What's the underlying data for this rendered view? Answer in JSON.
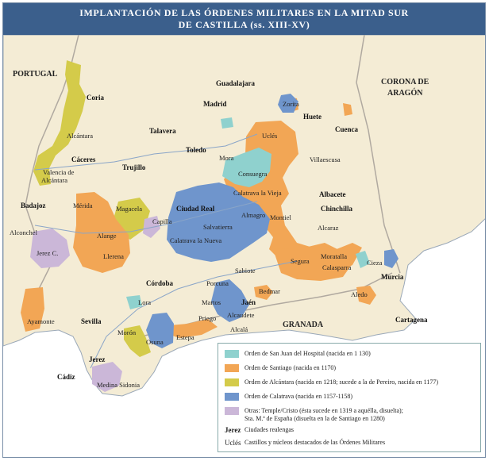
{
  "title": {
    "line1": "IMPLANTACIÓN DE LAS ÓRDENES MILITARES EN LA MITAD SUR",
    "line2": "DE CASTILLA (ss. XIII-XV)"
  },
  "colors": {
    "sea": "#ffffff",
    "land": "#f4ecd5",
    "frame": "#3b5f8c",
    "hospital": "#8fd1ce",
    "santiago": "#f2a655",
    "alcantara": "#d4cb4a",
    "calatrava": "#6f95cc",
    "otras": "#cbb7d8",
    "border": "#7a8fa8"
  },
  "regions": {
    "portugal": "PORTUGAL",
    "corona_line1": "CORONA DE",
    "corona_line2": "ARAGÓN",
    "granada": "GRANADA"
  },
  "royal_cities": [
    "Coria",
    "Cáceres",
    "Trujillo",
    "Badajoz",
    "Talavera",
    "Toledo",
    "Madrid",
    "Guadalajara",
    "Huete",
    "Cuenca",
    "Ciudad Real",
    "Albacete",
    "Chinchilla",
    "Murcia",
    "Cartagena",
    "Córdoba",
    "Jaén",
    "Sevilla",
    "Jerez",
    "Cádiz"
  ],
  "order_places": [
    "Alcántara",
    "Valencia de",
    "Alcántara",
    "Mérida",
    "Alange",
    "Llerena",
    "Magacela",
    "Capilla",
    "Alconchel",
    "Jerez C.",
    "Zorita",
    "Uclés",
    "Mora",
    "Consuegra",
    "Villaescusa",
    "Calatrava la Vieja",
    "Almagro",
    "Salvatierra",
    "Calatrava la Nueva",
    "Montiel",
    "Alcaraz",
    "Sabiote",
    "Segura",
    "Moratalla",
    "Calasparra",
    "Cieza",
    "Aledo",
    "Bedmar",
    "Porcuna",
    "Martos",
    "Alcaudete",
    "Priego",
    "Alcalá",
    "Estepa",
    "Osuna",
    "Morón",
    "Lora",
    "Ayamonte",
    "Medina Sidonia"
  ],
  "legend": {
    "items": [
      {
        "label": "Orden de San Juan del Hospital (nacida en 1 130)"
      },
      {
        "label": "Orden de Santiago (nacida en 1170)"
      },
      {
        "label": "Orden de Alcántara (nacida en 1218; sucede a la de Pereiro, nacida en 1177)"
      },
      {
        "label": "Orden de Calatrava (nacida en 1157-1158)"
      },
      {
        "label_line1": "Otras: Temple/Cristo (ésta sucede en 1319 a aquélla, disuelta);",
        "label_line2": "Sta. M.ª de España (disuelta en la de Santiago en 1280)"
      }
    ],
    "royal_example": "Jerez",
    "royal_desc": "Ciudades realengas",
    "castle_example": "Uclés",
    "castle_desc": "Castillos y núcleos destacados de las Órdenes Militares"
  }
}
